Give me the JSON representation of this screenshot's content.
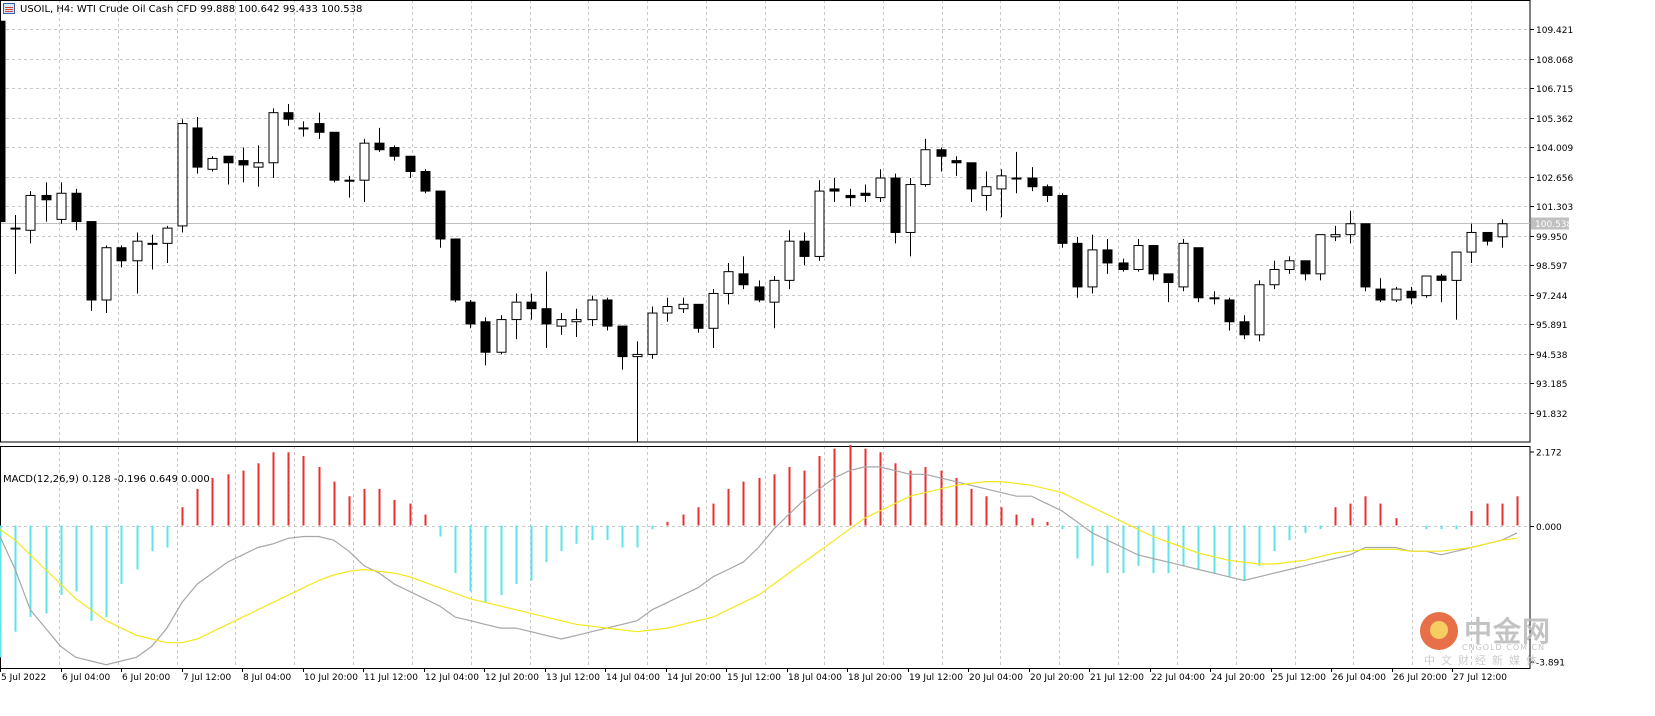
{
  "header": {
    "text": "USOIL, H4:  WTI Crude Oil Cash CFD   99.888 100.642 99.433 100.538"
  },
  "macd_header": {
    "text": "MACD(12,26,9) 0.128 -0.196 0.649 0.000"
  },
  "logo": {
    "main": "中金网",
    "domain": "CNGOLD.COM.CN",
    "tagline": "中文财经新媒体"
  },
  "colors": {
    "background": "#ffffff",
    "grid": "#c8c8c8",
    "frame": "#000000",
    "bull_body": "#ffffff",
    "bear_body": "#000000",
    "candle_outline": "#000000",
    "histogram_positive": "#e8312f",
    "histogram_negative": "#5ee3e8",
    "macd_line": "#a6a6a6",
    "signal_line": "#f5e71b",
    "current_price_line": "#c0c0c0",
    "current_price_tag": "#c0c0c0"
  },
  "chart_data": [
    {
      "type": "candlestick",
      "symbol": "USOIL",
      "timeframe": "H4",
      "description": "WTI Crude Oil Cash CFD",
      "ylim": [
        90.479,
        110.774
      ],
      "y_ticks": [
        "109.421",
        "108.068",
        "106.715",
        "105.362",
        "104.009",
        "102.656",
        "101.303",
        "99.950",
        "98.597",
        "97.244",
        "95.891",
        "94.538",
        "93.185",
        "91.832"
      ],
      "current_price": "100.538",
      "x_labels": [
        "5 Jul 2022",
        "6 Jul 04:00",
        "6 Jul 20:00",
        "7 Jul 12:00",
        "8 Jul 04:00",
        "10 Jul 20:00",
        "11 Jul 12:00",
        "12 Jul 04:00",
        "12 Jul 20:00",
        "13 Jul 12:00",
        "14 Jul 04:00",
        "14 Jul 20:00",
        "15 Jul 12:00",
        "18 Jul 04:00",
        "18 Jul 20:00",
        "19 Jul 12:00",
        "20 Jul 04:00",
        "20 Jul 20:00",
        "21 Jul 12:00",
        "22 Jul 04:00",
        "24 Jul 20:00",
        "25 Jul 12:00",
        "26 Jul 04:00",
        "26 Jul 20:00",
        "27 Jul 12:00"
      ],
      "ohlc": [
        [
          109.8,
          110.8,
          99.0,
          100.6
        ],
        [
          100.3,
          100.9,
          98.2,
          100.3
        ],
        [
          100.2,
          102.0,
          99.6,
          101.8
        ],
        [
          101.8,
          102.4,
          100.6,
          101.6
        ],
        [
          100.7,
          102.4,
          100.5,
          101.9
        ],
        [
          101.9,
          102.1,
          100.2,
          100.6
        ],
        [
          100.6,
          100.6,
          96.5,
          97.0
        ],
        [
          97.0,
          99.5,
          96.4,
          99.4
        ],
        [
          99.4,
          99.5,
          98.5,
          98.8
        ],
        [
          98.8,
          100.1,
          97.3,
          99.7
        ],
        [
          99.6,
          100.0,
          98.4,
          99.6
        ],
        [
          99.6,
          100.4,
          98.7,
          100.3
        ],
        [
          100.4,
          105.3,
          100.1,
          105.1
        ],
        [
          104.9,
          105.4,
          102.8,
          103.1
        ],
        [
          103.0,
          103.6,
          102.9,
          103.5
        ],
        [
          103.6,
          103.6,
          102.3,
          103.3
        ],
        [
          103.4,
          104.0,
          102.4,
          103.2
        ],
        [
          103.1,
          104.1,
          102.2,
          103.3
        ],
        [
          103.3,
          105.8,
          102.6,
          105.6
        ],
        [
          105.6,
          106.0,
          105.0,
          105.3
        ],
        [
          104.9,
          105.2,
          104.5,
          104.9
        ],
        [
          105.1,
          105.6,
          104.4,
          104.7
        ],
        [
          104.7,
          104.7,
          102.4,
          102.5
        ],
        [
          102.5,
          102.7,
          101.7,
          102.5
        ],
        [
          102.5,
          104.4,
          101.5,
          104.2
        ],
        [
          104.2,
          104.9,
          103.8,
          103.9
        ],
        [
          104.0,
          104.1,
          103.4,
          103.6
        ],
        [
          103.6,
          103.6,
          102.6,
          102.9
        ],
        [
          102.9,
          103.0,
          101.9,
          102.0
        ],
        [
          102.0,
          102.0,
          99.4,
          99.8
        ],
        [
          99.8,
          99.8,
          96.9,
          97.0
        ],
        [
          96.9,
          97.0,
          95.7,
          95.9
        ],
        [
          96.0,
          96.2,
          94.0,
          94.6
        ],
        [
          94.6,
          96.3,
          94.5,
          96.1
        ],
        [
          96.1,
          97.3,
          95.2,
          96.9
        ],
        [
          96.9,
          97.3,
          96.1,
          96.6
        ],
        [
          96.6,
          98.3,
          94.8,
          95.9
        ],
        [
          95.8,
          96.4,
          95.4,
          96.1
        ],
        [
          96.0,
          96.6,
          95.3,
          96.1
        ],
        [
          96.1,
          97.2,
          95.8,
          97.0
        ],
        [
          97.0,
          97.1,
          95.6,
          95.8
        ],
        [
          95.8,
          95.8,
          93.8,
          94.4
        ],
        [
          94.4,
          95.1,
          90.5,
          94.5
        ],
        [
          94.5,
          96.7,
          94.3,
          96.4
        ],
        [
          96.4,
          97.1,
          96.0,
          96.7
        ],
        [
          96.6,
          97.1,
          96.4,
          96.8
        ],
        [
          96.8,
          96.8,
          95.5,
          95.7
        ],
        [
          95.7,
          97.5,
          94.8,
          97.3
        ],
        [
          97.3,
          98.7,
          96.8,
          98.3
        ],
        [
          98.2,
          99.0,
          97.5,
          97.7
        ],
        [
          97.6,
          97.9,
          96.9,
          97.0
        ],
        [
          96.9,
          98.1,
          95.7,
          97.9
        ],
        [
          97.9,
          100.2,
          97.5,
          99.7
        ],
        [
          99.7,
          100.1,
          98.6,
          99.0
        ],
        [
          99.0,
          102.5,
          98.8,
          102.0
        ],
        [
          102.1,
          102.6,
          101.5,
          102.0
        ],
        [
          101.8,
          102.1,
          101.3,
          101.7
        ],
        [
          101.9,
          102.3,
          101.5,
          101.8
        ],
        [
          101.7,
          103.0,
          101.5,
          102.6
        ],
        [
          102.6,
          102.8,
          99.6,
          100.1
        ],
        [
          100.1,
          102.6,
          99.0,
          102.3
        ],
        [
          102.3,
          104.4,
          102.2,
          103.9
        ],
        [
          103.9,
          104.0,
          102.9,
          103.6
        ],
        [
          103.4,
          103.6,
          102.7,
          103.3
        ],
        [
          103.3,
          103.3,
          101.5,
          102.1
        ],
        [
          101.8,
          102.9,
          101.1,
          102.2
        ],
        [
          102.1,
          103.0,
          100.8,
          102.7
        ],
        [
          102.6,
          103.8,
          101.9,
          102.6
        ],
        [
          102.6,
          103.1,
          102.0,
          102.2
        ],
        [
          102.2,
          102.3,
          101.5,
          101.8
        ],
        [
          101.8,
          101.9,
          99.4,
          99.6
        ],
        [
          99.6,
          99.9,
          97.1,
          97.6
        ],
        [
          97.6,
          100.0,
          97.3,
          99.3
        ],
        [
          99.3,
          99.8,
          98.2,
          98.7
        ],
        [
          98.7,
          98.9,
          98.3,
          98.4
        ],
        [
          98.4,
          99.8,
          98.3,
          99.5
        ],
        [
          99.5,
          99.5,
          97.9,
          98.2
        ],
        [
          98.2,
          98.2,
          96.9,
          97.8
        ],
        [
          97.6,
          99.8,
          97.4,
          99.6
        ],
        [
          99.4,
          99.4,
          96.9,
          97.1
        ],
        [
          97.1,
          97.4,
          96.8,
          97.1
        ],
        [
          97.0,
          97.1,
          95.6,
          96.0
        ],
        [
          96.0,
          96.3,
          95.2,
          95.4
        ],
        [
          95.4,
          97.9,
          95.1,
          97.7
        ],
        [
          97.7,
          98.8,
          97.5,
          98.4
        ],
        [
          98.4,
          99.0,
          98.2,
          98.8
        ],
        [
          98.8,
          98.8,
          97.9,
          98.2
        ],
        [
          98.2,
          100.0,
          97.9,
          100.0
        ],
        [
          99.9,
          100.4,
          99.7,
          100.0
        ],
        [
          100.0,
          101.1,
          99.6,
          100.5
        ],
        [
          100.5,
          100.5,
          97.4,
          97.6
        ],
        [
          97.5,
          98.0,
          96.9,
          97.0
        ],
        [
          97.0,
          97.6,
          96.9,
          97.5
        ],
        [
          97.4,
          97.6,
          96.8,
          97.1
        ],
        [
          97.2,
          98.1,
          97.1,
          98.1
        ],
        [
          98.1,
          98.2,
          96.9,
          97.9
        ],
        [
          97.9,
          99.2,
          96.1,
          99.2
        ],
        [
          99.2,
          100.5,
          98.7,
          100.1
        ],
        [
          100.1,
          100.1,
          99.5,
          99.7
        ],
        [
          99.9,
          100.7,
          99.4,
          100.5
        ]
      ]
    },
    {
      "type": "macd",
      "params": "12,26,9",
      "ylim": [
        -3.891,
        2.172
      ],
      "y_ticks": [
        "2.172",
        "0.000",
        "-3.891"
      ],
      "histogram": [
        -3.6,
        -2.9,
        -2.5,
        -2.4,
        -1.9,
        -1.8,
        -2.6,
        -2.5,
        -1.6,
        -1.2,
        -0.7,
        -0.6,
        0.5,
        1.0,
        1.3,
        1.4,
        1.5,
        1.7,
        2.0,
        2.0,
        1.9,
        1.6,
        1.2,
        0.8,
        1.0,
        1.0,
        0.7,
        0.6,
        0.3,
        -0.3,
        -1.3,
        -1.8,
        -2.1,
        -1.9,
        -1.6,
        -1.5,
        -1.0,
        -0.7,
        -0.5,
        -0.4,
        -0.4,
        -0.6,
        -0.6,
        -0.1,
        0.1,
        0.3,
        0.5,
        0.6,
        1.0,
        1.2,
        1.3,
        1.4,
        1.6,
        1.5,
        1.9,
        2.1,
        2.2,
        2.1,
        2.0,
        1.7,
        1.5,
        1.6,
        1.5,
        1.3,
        1.0,
        0.8,
        0.5,
        0.3,
        0.2,
        0.1,
        -0.1,
        -0.9,
        -1.1,
        -1.3,
        -1.3,
        -1.1,
        -1.3,
        -1.3,
        -1.1,
        -1.2,
        -1.3,
        -1.4,
        -1.5,
        -1.1,
        -0.7,
        -0.4,
        -0.2,
        -0.1,
        0.5,
        0.6,
        0.8,
        0.6,
        0.2,
        0.0,
        -0.1,
        -0.1,
        -0.1,
        0.4,
        0.6,
        0.6,
        0.8
      ],
      "macd": [
        -0.3,
        -1.2,
        -2.3,
        -2.8,
        -3.3,
        -3.6,
        -3.7,
        -3.8,
        -3.7,
        -3.6,
        -3.3,
        -2.8,
        -2.1,
        -1.6,
        -1.3,
        -1.0,
        -0.8,
        -0.6,
        -0.5,
        -0.35,
        -0.3,
        -0.3,
        -0.4,
        -0.7,
        -1.1,
        -1.3,
        -1.6,
        -1.8,
        -2.0,
        -2.2,
        -2.5,
        -2.6,
        -2.7,
        -2.8,
        -2.8,
        -2.9,
        -3.0,
        -3.1,
        -3.0,
        -2.9,
        -2.8,
        -2.7,
        -2.6,
        -2.3,
        -2.1,
        -1.9,
        -1.7,
        -1.4,
        -1.2,
        -1.0,
        -0.6,
        -0.1,
        0.3,
        0.7,
        1.0,
        1.3,
        1.5,
        1.6,
        1.6,
        1.5,
        1.4,
        1.4,
        1.3,
        1.2,
        1.1,
        1.0,
        0.9,
        0.8,
        0.8,
        0.6,
        0.4,
        0.1,
        -0.2,
        -0.4,
        -0.6,
        -0.8,
        -0.9,
        -1.0,
        -1.1,
        -1.2,
        -1.3,
        -1.4,
        -1.5,
        -1.4,
        -1.3,
        -1.2,
        -1.1,
        -1.0,
        -0.9,
        -0.8,
        -0.6,
        -0.6,
        -0.6,
        -0.7,
        -0.7,
        -0.8,
        -0.7,
        -0.6,
        -0.5,
        -0.4,
        -0.2
      ],
      "signal": [
        -0.1,
        -0.4,
        -0.8,
        -1.2,
        -1.6,
        -2.0,
        -2.3,
        -2.6,
        -2.8,
        -3.0,
        -3.1,
        -3.2,
        -3.2,
        -3.1,
        -2.9,
        -2.7,
        -2.5,
        -2.3,
        -2.1,
        -1.9,
        -1.7,
        -1.5,
        -1.35,
        -1.25,
        -1.2,
        -1.25,
        -1.3,
        -1.4,
        -1.55,
        -1.7,
        -1.85,
        -2.0,
        -2.1,
        -2.2,
        -2.3,
        -2.4,
        -2.5,
        -2.6,
        -2.7,
        -2.75,
        -2.8,
        -2.85,
        -2.9,
        -2.85,
        -2.8,
        -2.7,
        -2.6,
        -2.5,
        -2.3,
        -2.1,
        -1.9,
        -1.6,
        -1.3,
        -1.0,
        -0.7,
        -0.4,
        -0.1,
        0.2,
        0.4,
        0.6,
        0.8,
        0.9,
        1.0,
        1.1,
        1.15,
        1.2,
        1.2,
        1.15,
        1.1,
        1.0,
        0.9,
        0.7,
        0.5,
        0.3,
        0.1,
        -0.1,
        -0.3,
        -0.45,
        -0.6,
        -0.75,
        -0.85,
        -0.95,
        -1.0,
        -1.05,
        -1.05,
        -1.0,
        -0.95,
        -0.85,
        -0.75,
        -0.7,
        -0.65,
        -0.65,
        -0.65,
        -0.7,
        -0.7,
        -0.7,
        -0.65,
        -0.6,
        -0.5,
        -0.4,
        -0.35
      ]
    }
  ]
}
